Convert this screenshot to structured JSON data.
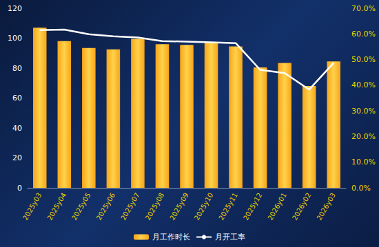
{
  "chart_data": {
    "type": "bar",
    "categories": [
      "2025y03",
      "2025y04",
      "2025y05",
      "2025y06",
      "2025y07",
      "2025y08",
      "2025y09",
      "2025y10",
      "2025y11",
      "2025y12",
      "2026y01",
      "2026y02",
      "2026y03"
    ],
    "series": [
      {
        "name": "月工作时长",
        "type": "bar",
        "color": "#f6a51a",
        "values": [
          107,
          98,
          93.5,
          92.5,
          99.5,
          96,
          95.5,
          97.5,
          94.5,
          80.5,
          83.5,
          68,
          84.5
        ]
      },
      {
        "name": "月开工率",
        "type": "line",
        "axis": "y2",
        "color": "#ffffff",
        "marker": "none",
        "values": [
          61.5,
          61.7,
          59.9,
          59.1,
          58.6,
          57.2,
          57,
          56.7,
          56.4,
          46,
          44.7,
          38.3,
          48.7
        ]
      }
    ],
    "ylim": [
      0,
      120
    ],
    "yticks": [
      0,
      20,
      40,
      60,
      80,
      100,
      120
    ],
    "y2lim": [
      0,
      70
    ],
    "y2ticks": [
      {
        "value": 0,
        "label": "0.0%"
      },
      {
        "value": 10,
        "label": "10.0%"
      },
      {
        "value": 20,
        "label": "20.0%"
      },
      {
        "value": 30,
        "label": "30.0%"
      },
      {
        "value": 40,
        "label": "40.0%"
      },
      {
        "value": 50,
        "label": "50.0%"
      },
      {
        "value": 60,
        "label": "60.0%"
      },
      {
        "value": 70,
        "label": "70.0%"
      }
    ],
    "grid": false,
    "legend": "bottom"
  }
}
